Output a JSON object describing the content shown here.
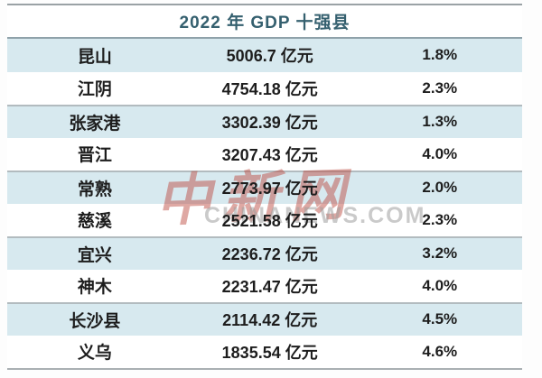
{
  "chart_data": {
    "type": "table",
    "title": "2022 年 GDP 十强县",
    "rows": [
      {
        "name": "昆山",
        "gdp": "5006.7 亿元",
        "growth": "1.8%"
      },
      {
        "name": "江阴",
        "gdp": "4754.18 亿元",
        "growth": "2.3%"
      },
      {
        "name": "张家港",
        "gdp": "3302.39 亿元",
        "growth": "1.3%"
      },
      {
        "name": "晋江",
        "gdp": "3207.43 亿元",
        "growth": "4.0%"
      },
      {
        "name": "常熟",
        "gdp": "2773.97 亿元",
        "growth": "2.0%"
      },
      {
        "name": "慈溪",
        "gdp": "2521.58 亿元",
        "growth": "2.3%"
      },
      {
        "name": "宜兴",
        "gdp": "2236.72 亿元",
        "growth": "3.2%"
      },
      {
        "name": "神木",
        "gdp": "2231.47 亿元",
        "growth": "4.0%"
      },
      {
        "name": "长沙县",
        "gdp": "2114.42 亿元",
        "growth": "4.5%"
      },
      {
        "name": "义乌",
        "gdp": "1835.54 亿元",
        "growth": "4.6%"
      }
    ],
    "layout": {
      "row_group_size": 2,
      "alternating_row_color_starts": "blue",
      "columns_align": "center"
    }
  },
  "watermark": {
    "cn": "中新网",
    "en": "CHINANEWS.COM"
  },
  "colors": {
    "row_blue": "#d7e9ef",
    "title_text": "#35606f",
    "body_text": "#1d1d1d",
    "separator_line": "#b2bbbf",
    "frame_line": "#9aa2a5",
    "watermark_red": "#bc4a3f"
  }
}
